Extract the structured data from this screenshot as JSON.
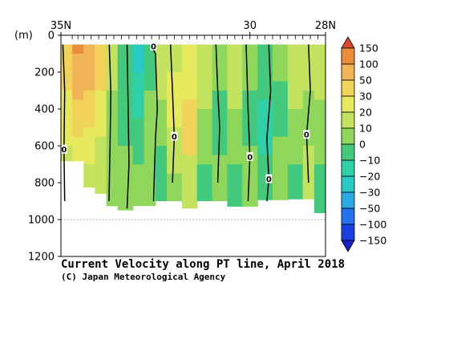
{
  "chart_data": {
    "type": "heatmap",
    "title": "Current Velocity along PT line, April 2018",
    "credit": "(C) Japan Meteorological Agency",
    "y_unit": "(m)",
    "x_ticks": [
      {
        "label": "35N",
        "lat": 35
      },
      {
        "label": "30",
        "lat": 30
      },
      {
        "label": "28N",
        "lat": 28
      }
    ],
    "xlim": [
      35,
      28
    ],
    "y_ticks": [
      "0",
      "200",
      "400",
      "600",
      "800",
      "1000",
      "1200"
    ],
    "ylim": [
      0,
      1200
    ],
    "reference_depth": 1000,
    "station_lats": [
      34.7,
      34.55,
      34.4,
      34.2,
      34.0,
      33.8,
      33.6,
      33.4,
      33.2,
      33.0,
      32.8,
      32.6,
      32.4,
      32.2,
      32.0,
      31.8,
      31.6,
      31.4,
      31.2,
      31.0,
      30.8,
      30.6,
      30.4,
      30.2,
      30.0,
      29.8,
      29.6,
      29.4,
      29.2,
      29.0,
      28.8,
      28.6,
      28.4,
      28.2
    ],
    "data_top_depth": 50,
    "bottom_profile": [
      {
        "lat": 34.92,
        "depth": 900
      },
      {
        "lat": 34.75,
        "depth": 680
      },
      {
        "lat": 34.6,
        "depth": 690
      },
      {
        "lat": 34.5,
        "depth": 800
      },
      {
        "lat": 34.35,
        "depth": 840
      },
      {
        "lat": 34.2,
        "depth": 830
      },
      {
        "lat": 33.9,
        "depth": 920
      },
      {
        "lat": 33.5,
        "depth": 950
      },
      {
        "lat": 33.1,
        "depth": 960
      },
      {
        "lat": 32.9,
        "depth": 920
      },
      {
        "lat": 32.6,
        "depth": 940
      },
      {
        "lat": 32.2,
        "depth": 900
      },
      {
        "lat": 31.8,
        "depth": 960
      },
      {
        "lat": 31.4,
        "depth": 940
      },
      {
        "lat": 31.0,
        "depth": 900
      },
      {
        "lat": 30.6,
        "depth": 950
      },
      {
        "lat": 30.2,
        "depth": 930
      },
      {
        "lat": 29.8,
        "depth": 960
      },
      {
        "lat": 29.5,
        "depth": 910
      },
      {
        "lat": 29.3,
        "depth": 880
      },
      {
        "lat": 29.0,
        "depth": 900
      },
      {
        "lat": 28.7,
        "depth": 870
      },
      {
        "lat": 28.4,
        "depth": 930
      },
      {
        "lat": 28.2,
        "depth": 1000
      },
      {
        "lat": 28.05,
        "depth": 1100
      },
      {
        "lat": 28.0,
        "depth": 1150
      }
    ],
    "velocity_bands": [
      {
        "lat_from": 35.0,
        "lat_to": 34.7,
        "levels": [
          {
            "top": 0,
            "value": 30
          },
          {
            "top": 300,
            "value": 20
          },
          {
            "top": 600,
            "value": 10
          }
        ]
      },
      {
        "lat_from": 34.7,
        "lat_to": 34.4,
        "levels": [
          {
            "top": 0,
            "value": 100
          },
          {
            "top": 100,
            "value": 50
          },
          {
            "top": 350,
            "value": 30
          },
          {
            "top": 550,
            "value": 20
          },
          {
            "top": 750,
            "value": 10
          }
        ]
      },
      {
        "lat_from": 34.4,
        "lat_to": 34.1,
        "levels": [
          {
            "top": 0,
            "value": 50
          },
          {
            "top": 300,
            "value": 30
          },
          {
            "top": 500,
            "value": 20
          },
          {
            "top": 700,
            "value": 10
          }
        ]
      },
      {
        "lat_from": 34.1,
        "lat_to": 33.8,
        "levels": [
          {
            "top": 0,
            "value": 30
          },
          {
            "top": 300,
            "value": 20
          },
          {
            "top": 550,
            "value": 10
          }
        ]
      },
      {
        "lat_from": 33.8,
        "lat_to": 33.5,
        "levels": [
          {
            "top": 0,
            "value": 10
          },
          {
            "top": 300,
            "value": 0
          }
        ]
      },
      {
        "lat_from": 33.5,
        "lat_to": 33.1,
        "levels": [
          {
            "top": 0,
            "value": -10
          },
          {
            "top": 200,
            "value": -10
          },
          {
            "top": 600,
            "value": 0
          }
        ]
      },
      {
        "lat_from": 33.1,
        "lat_to": 32.8,
        "levels": [
          {
            "top": 0,
            "value": -30
          },
          {
            "top": 200,
            "value": -20
          },
          {
            "top": 450,
            "value": -10
          },
          {
            "top": 700,
            "value": 0
          }
        ]
      },
      {
        "lat_from": 32.8,
        "lat_to": 32.5,
        "levels": [
          {
            "top": 0,
            "value": -10
          },
          {
            "top": 300,
            "value": 0
          }
        ]
      },
      {
        "lat_from": 32.5,
        "lat_to": 32.2,
        "levels": [
          {
            "top": 0,
            "value": 10
          },
          {
            "top": 350,
            "value": 0
          },
          {
            "top": 600,
            "value": -10
          }
        ]
      },
      {
        "lat_from": 32.2,
        "lat_to": 31.8,
        "levels": [
          {
            "top": 0,
            "value": 10
          },
          {
            "top": 200,
            "value": 20
          },
          {
            "top": 500,
            "value": 10
          },
          {
            "top": 750,
            "value": 0
          }
        ]
      },
      {
        "lat_from": 31.8,
        "lat_to": 31.4,
        "levels": [
          {
            "top": 0,
            "value": 20
          },
          {
            "top": 350,
            "value": 30
          },
          {
            "top": 650,
            "value": 10
          }
        ]
      },
      {
        "lat_from": 31.4,
        "lat_to": 31.0,
        "levels": [
          {
            "top": 0,
            "value": 10
          },
          {
            "top": 400,
            "value": 0
          },
          {
            "top": 700,
            "value": -10
          }
        ]
      },
      {
        "lat_from": 31.0,
        "lat_to": 30.6,
        "levels": [
          {
            "top": 0,
            "value": 0
          },
          {
            "top": 300,
            "value": -10
          },
          {
            "top": 650,
            "value": 0
          }
        ]
      },
      {
        "lat_from": 30.6,
        "lat_to": 30.2,
        "levels": [
          {
            "top": 0,
            "value": 10
          },
          {
            "top": 400,
            "value": 0
          },
          {
            "top": 700,
            "value": -10
          }
        ]
      },
      {
        "lat_from": 30.2,
        "lat_to": 29.8,
        "levels": [
          {
            "top": 0,
            "value": 0
          },
          {
            "top": 300,
            "value": -10
          },
          {
            "top": 600,
            "value": 0
          }
        ]
      },
      {
        "lat_from": 29.8,
        "lat_to": 29.4,
        "levels": [
          {
            "top": 0,
            "value": -10
          },
          {
            "top": 350,
            "value": -20
          },
          {
            "top": 650,
            "value": -10
          }
        ]
      },
      {
        "lat_from": 29.4,
        "lat_to": 29.0,
        "levels": [
          {
            "top": 0,
            "value": 0
          },
          {
            "top": 250,
            "value": -10
          },
          {
            "top": 550,
            "value": 0
          }
        ]
      },
      {
        "lat_from": 29.0,
        "lat_to": 28.6,
        "levels": [
          {
            "top": 0,
            "value": 10
          },
          {
            "top": 400,
            "value": 0
          },
          {
            "top": 700,
            "value": -10
          }
        ]
      },
      {
        "lat_from": 28.6,
        "lat_to": 28.3,
        "levels": [
          {
            "top": 0,
            "value": 10
          },
          {
            "top": 300,
            "value": 0
          },
          {
            "top": 600,
            "value": 10
          }
        ]
      },
      {
        "lat_from": 28.3,
        "lat_to": 28.0,
        "levels": [
          {
            "top": 0,
            "value": 10
          },
          {
            "top": 350,
            "value": 0
          },
          {
            "top": 700,
            "value": -10
          }
        ]
      }
    ],
    "zero_contours": [
      {
        "points": [
          [
            34.95,
            50
          ],
          [
            34.9,
            300
          ],
          [
            34.92,
            620
          ],
          [
            34.9,
            900
          ]
        ],
        "label": "0",
        "label_at": [
          34.92,
          620
        ]
      },
      {
        "points": [
          [
            33.72,
            50
          ],
          [
            33.68,
            300
          ],
          [
            33.7,
            600
          ],
          [
            33.73,
            900
          ]
        ]
      },
      {
        "points": [
          [
            33.25,
            50
          ],
          [
            33.22,
            400
          ],
          [
            33.2,
            700
          ],
          [
            33.25,
            940
          ]
        ]
      },
      {
        "points": [
          [
            32.55,
            50
          ],
          [
            32.6,
            60
          ],
          [
            32.5,
            100
          ],
          [
            32.45,
            400
          ],
          [
            32.5,
            560
          ],
          [
            32.55,
            900
          ]
        ],
        "label": "0",
        "label_at": [
          32.55,
          60
        ]
      },
      {
        "points": [
          [
            32.1,
            50
          ],
          [
            32.05,
            300
          ],
          [
            32.0,
            550
          ],
          [
            32.05,
            800
          ]
        ],
        "label": "0",
        "label_at": [
          32.0,
          550
        ]
      },
      {
        "points": [
          [
            30.9,
            50
          ],
          [
            30.85,
            300
          ],
          [
            30.8,
            500
          ],
          [
            30.85,
            800
          ]
        ]
      },
      {
        "points": [
          [
            30.1,
            50
          ],
          [
            30.05,
            400
          ],
          [
            30.0,
            660
          ],
          [
            30.05,
            900
          ]
        ],
        "label": "0",
        "label_at": [
          30.0,
          660
        ]
      },
      {
        "points": [
          [
            29.5,
            50
          ],
          [
            29.45,
            300
          ],
          [
            29.55,
            560
          ],
          [
            29.5,
            780
          ],
          [
            29.55,
            900
          ]
        ],
        "label": "0",
        "label_at": [
          29.5,
          780
        ]
      },
      {
        "points": [
          [
            28.45,
            50
          ],
          [
            28.4,
            300
          ],
          [
            28.5,
            540
          ],
          [
            28.45,
            800
          ]
        ],
        "label": "0",
        "label_at": [
          28.5,
          540
        ]
      }
    ],
    "legend": {
      "position": "right",
      "levels": [
        "150",
        "100",
        "50",
        "30",
        "20",
        "10",
        "0",
        "−10",
        "−20",
        "−30",
        "−50",
        "−100",
        "−150"
      ],
      "colors": [
        "#d8482c",
        "#ea8c3a",
        "#f1b456",
        "#f2d35a",
        "#e6e95c",
        "#c3e25e",
        "#8fd75a",
        "#42c97e",
        "#2fd0a8",
        "#29c9c6",
        "#2aa9e5",
        "#2472ef",
        "#1b3fe0",
        "#1922c8"
      ]
    }
  }
}
